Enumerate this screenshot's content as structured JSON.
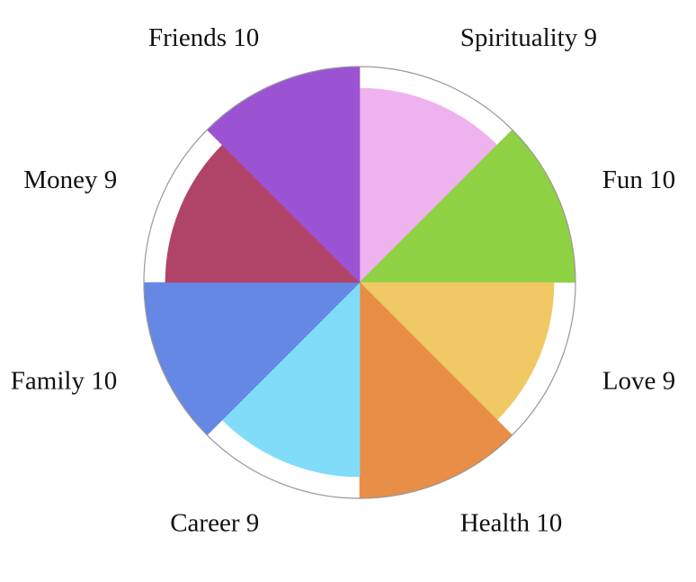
{
  "chart_data": {
    "type": "polar-area",
    "max_value": 10,
    "categories": [
      "Spirituality",
      "Fun",
      "Love",
      "Health",
      "Career",
      "Family",
      "Money",
      "Friends"
    ],
    "values": [
      9,
      10,
      9,
      10,
      9,
      10,
      9,
      10
    ],
    "colors": [
      "#EEB3EE",
      "#8ED243",
      "#F0C864",
      "#E88E46",
      "#80DCF8",
      "#6488E4",
      "#B04368",
      "#9B53D4"
    ],
    "labels": [
      "Spirituality 9",
      "Fun 10",
      "Love 9",
      "Health 10",
      "Career 9",
      "Family 10",
      "Money 9",
      "Friends 10"
    ],
    "outer_ring": true,
    "ring_color": "#999999",
    "legend": "none",
    "grid": false
  }
}
